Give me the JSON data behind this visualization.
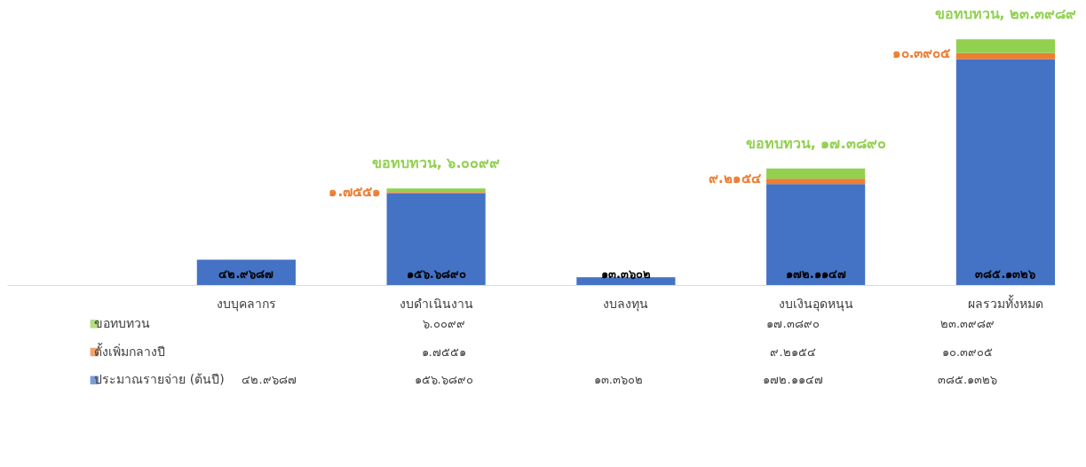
{
  "chart_data": {
    "type": "bar",
    "stacked": true,
    "legend": "bottom",
    "grid": false,
    "annotations": [
      {
        "text": "ขอทบทวน, ๖.๐๐๙๙",
        "x": "งบดำเนินงาน",
        "y": 164.454
      },
      {
        "text": "ขอทบทวน, ๑๗.๓๘๙๐",
        "x": "งบเงินอุดหนุน",
        "y": 198.7191
      },
      {
        "text": "ขอทบทวน, ๒๓.๓๙๘๙",
        "x": "ผลรวมทั้งหมด",
        "y": 418.922
      }
    ],
    "categories": [
      "งบบุคลากร",
      "งบดำเนินงาน",
      "งบลงทุน",
      "งบเงินอุดหนุน",
      "ผลรวมทั้งหมด"
    ],
    "series": [
      {
        "name": "ประมาณรายจ่าย (ต้นปี)",
        "color": "#4472c4",
        "values": [
          42.9687,
          156.689,
          13.3602,
          172.1147,
          385.1326
        ],
        "value_labels": [
          "๔๒.๙๖๘๗",
          "๑๕๖.๖๘๙๐",
          "๑๓.๓๖๐๒",
          "๑๗๒.๑๑๔๗",
          "๓๘๕.๑๓๒๖"
        ]
      },
      {
        "name": "ตั้งเพิ่มกลางปี",
        "color": "#ed7d31",
        "values": [
          null,
          1.7551,
          null,
          9.2154,
          10.3905
        ],
        "value_labels": [
          null,
          "๑.๗๕๕๑",
          null,
          "๙.๒๑๕๔",
          "๑๐.๓๙๐๕"
        ]
      },
      {
        "name": "ขอทบทวน",
        "color": "#92d050",
        "values": [
          null,
          6.0099,
          null,
          17.389,
          23.3989
        ],
        "value_labels": [
          null,
          "๖.๐๐๙๙",
          null,
          "๑๗.๓๘๙๐",
          "๒๓.๓๙๘๙"
        ]
      }
    ]
  }
}
